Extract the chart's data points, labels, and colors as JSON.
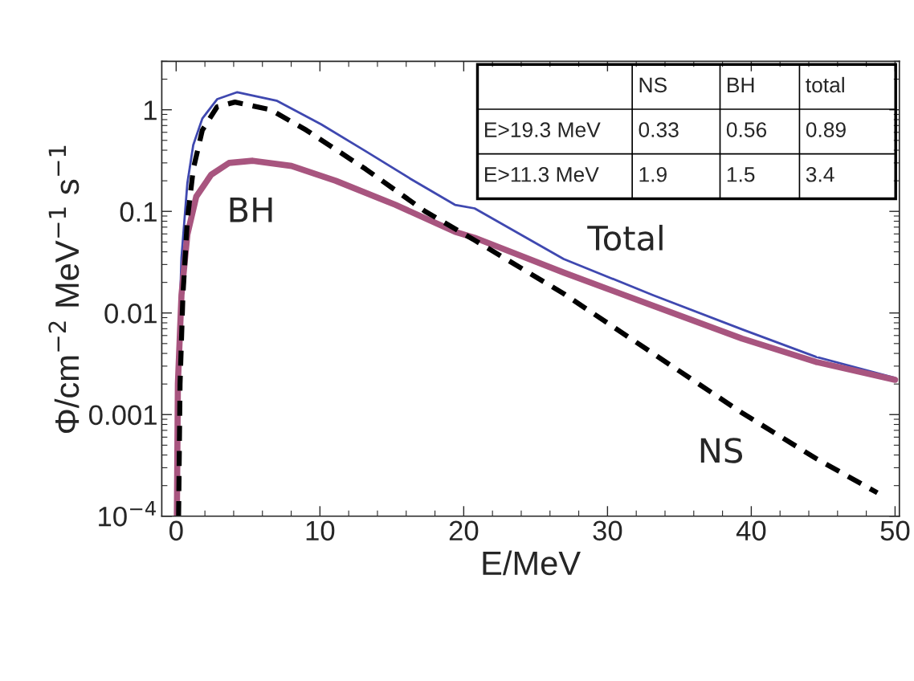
{
  "chart_data": {
    "type": "line",
    "xlabel": "E/MeV",
    "ylabel": "Φ/cm$^{−2}$ MeV$^{−1}$ s$^{−1}$",
    "log": "y",
    "xlim": [
      -1,
      50.3
    ],
    "ylim": [
      0.0001,
      3
    ],
    "xticks": [
      0,
      10,
      20,
      30,
      40,
      50
    ],
    "yticks": [
      {
        "value": 0.0001,
        "label": "10$^{−4}$"
      },
      0.001,
      0.01,
      0.1,
      1
    ],
    "grid": false,
    "legend": false,
    "series": [
      {
        "name": "Total",
        "color": "#3f48b0",
        "line_style": "solid",
        "x": [
          0.05,
          0.16,
          0.37,
          0.78,
          1.19,
          1.82,
          2.85,
          4.25,
          6.98,
          10.08,
          13.19,
          16.28,
          19.39,
          20.76,
          26.95,
          33.16,
          39.36,
          44.5,
          50
        ],
        "values": [
          0.0001,
          0.004,
          0.035,
          0.19,
          0.45,
          0.82,
          1.27,
          1.49,
          1.23,
          0.72,
          0.39,
          0.21,
          0.116,
          0.107,
          0.034,
          0.015,
          0.0069,
          0.0037,
          0.0023
        ]
      },
      {
        "name": "BH",
        "color": "#a8557f",
        "line_style": "solid",
        "x": [
          0.05,
          0.12,
          0.37,
          0.78,
          1.4,
          2.44,
          3.68,
          5.33,
          8.02,
          11.1,
          15.25,
          19.39,
          20.76,
          26.95,
          33.16,
          39.36,
          44.5,
          50
        ],
        "values": [
          0.0001,
          0.002,
          0.015,
          0.059,
          0.14,
          0.23,
          0.3,
          0.315,
          0.28,
          0.2,
          0.116,
          0.063,
          0.055,
          0.025,
          0.0118,
          0.0056,
          0.0033,
          0.0022
        ]
      },
      {
        "name": "NS",
        "color": "#000000",
        "line_style": "dashed",
        "x": [
          0.17,
          0.27,
          0.47,
          0.78,
          1.19,
          1.82,
          2.85,
          4.09,
          6.57,
          9.05,
          13.19,
          17.32,
          20.76,
          26.95,
          33.16,
          39.36,
          44.5,
          48.77
        ],
        "values": [
          0.0001,
          0.002,
          0.015,
          0.083,
          0.26,
          0.63,
          1.07,
          1.19,
          1.0,
          0.63,
          0.26,
          0.1,
          0.052,
          0.0155,
          0.004,
          0.00104,
          0.00037,
          0.00017
        ]
      }
    ],
    "annotations": [
      "NS",
      "BH",
      "total",
      "E>19.3 MeV",
      "0.33",
      "0.56",
      "0.89",
      "E>11.3 MeV",
      "1.9",
      "1.5",
      "3.4"
    ]
  }
}
